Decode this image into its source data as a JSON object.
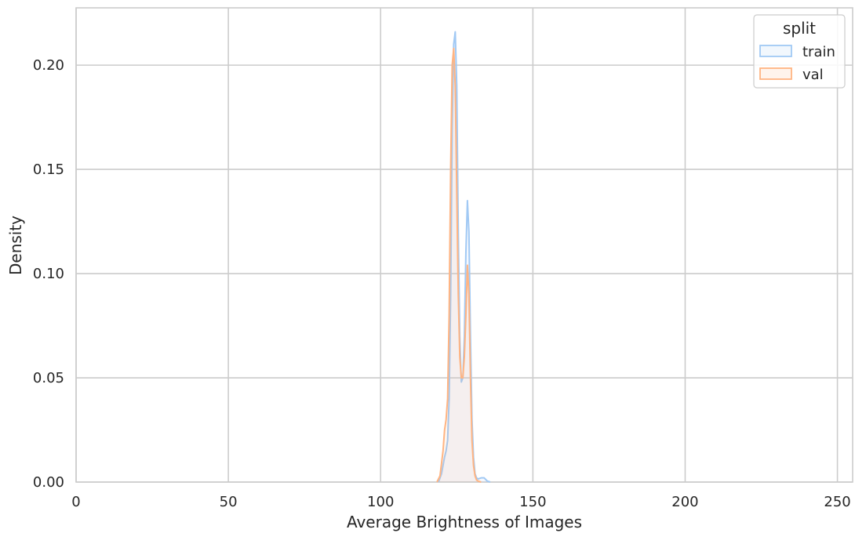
{
  "chart_data": {
    "type": "area",
    "title": "",
    "xlabel": "Average Brightness of Images",
    "ylabel": "Density",
    "xlim": [
      0,
      255
    ],
    "ylim": [
      0,
      0.2275
    ],
    "xticks": [
      0,
      50,
      100,
      150,
      200,
      250
    ],
    "xtick_labels": [
      "0",
      "50",
      "100",
      "150",
      "200",
      "250"
    ],
    "yticks": [
      0.0,
      0.05,
      0.1,
      0.15,
      0.2
    ],
    "ytick_labels": [
      "0.00",
      "0.05",
      "0.10",
      "0.15",
      "0.20"
    ],
    "grid": true,
    "legend": {
      "title": "split",
      "position": "top-right"
    },
    "series": [
      {
        "name": "train",
        "color": "#a1c9f4",
        "x": [
          119,
          120,
          121,
          121.5,
          122,
          122.5,
          123,
          123.5,
          124,
          124.5,
          125,
          125.5,
          126,
          126.5,
          127,
          127.5,
          128,
          128.5,
          129,
          129.5,
          130,
          130.5,
          131,
          131.5,
          132,
          133,
          134,
          135,
          136
        ],
        "y": [
          0.0,
          0.004,
          0.012,
          0.015,
          0.02,
          0.04,
          0.09,
          0.17,
          0.21,
          0.216,
          0.19,
          0.12,
          0.07,
          0.048,
          0.05,
          0.07,
          0.11,
          0.135,
          0.12,
          0.07,
          0.03,
          0.012,
          0.004,
          0.002,
          0.0015,
          0.002,
          0.002,
          0.0005,
          0.0
        ]
      },
      {
        "name": "val",
        "color": "#ffb482",
        "x": [
          118.5,
          119.5,
          120.5,
          121,
          121.5,
          122,
          122.5,
          123,
          123.5,
          124,
          124.5,
          125,
          125.5,
          126,
          126.5,
          127,
          127.5,
          128,
          128.5,
          129,
          129.5,
          130,
          130.5,
          131,
          131.5,
          132,
          133
        ],
        "y": [
          0.0,
          0.003,
          0.015,
          0.025,
          0.03,
          0.04,
          0.08,
          0.15,
          0.2,
          0.208,
          0.19,
          0.14,
          0.09,
          0.06,
          0.05,
          0.05,
          0.06,
          0.08,
          0.104,
          0.09,
          0.05,
          0.02,
          0.008,
          0.003,
          0.001,
          0.0005,
          0.0
        ]
      }
    ]
  }
}
